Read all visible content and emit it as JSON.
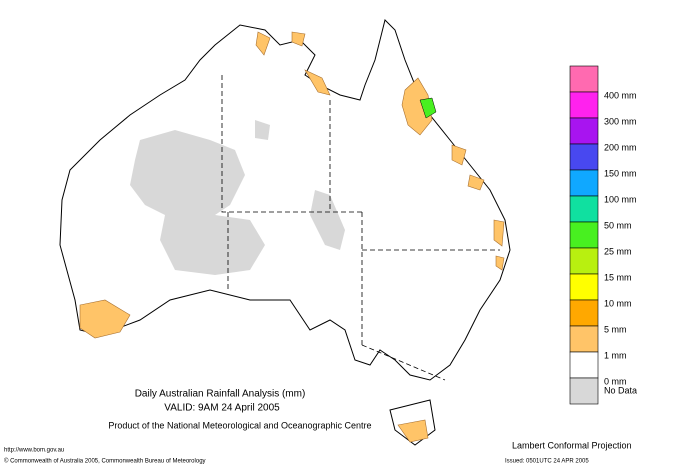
{
  "title": "Daily Australian Rainfall Analysis (mm)",
  "valid": "VALID: 9AM 24 April 2005",
  "product": "Product of the National Meteorological and Oceanographic Centre",
  "projection": "Lambert Conformal Projection",
  "url": "http://www.bom.gov.au",
  "copyright": "© Commonwealth of Australia 2005, Commonwealth Bureau of Meteorology",
  "issued": "Issued: 0501UTC 24 APR 2005",
  "legend": {
    "labels": [
      "400 mm",
      "300 mm",
      "200 mm",
      "150 mm",
      "100 mm",
      "50 mm",
      "25 mm",
      "15 mm",
      "10 mm",
      "5 mm",
      "1 mm",
      "0 mm",
      "No Data"
    ],
    "colors": [
      "#ff6ab0",
      "#ff22ee",
      "#a814f0",
      "#4848f0",
      "#10a8ff",
      "#10e0a0",
      "#48f020",
      "#b8f010",
      "#ffff00",
      "#ffa800",
      "#ffc468",
      "#ffffff",
      "#d8d8d8"
    ]
  }
}
